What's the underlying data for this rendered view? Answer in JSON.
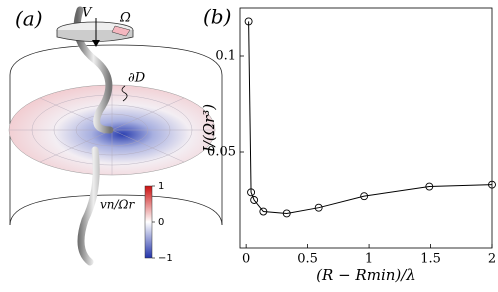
{
  "illustration": {
    "panel_label": "(a)",
    "velocity_label": "V",
    "rotation_label": "Ω",
    "surface_label": "∂D",
    "colorbar": {
      "label": "vn/Ωr",
      "lim": [
        -1,
        1
      ],
      "ticks": [
        1,
        0,
        {
          "value": -1,
          "label": "−1"
        }
      ],
      "colors": [
        "#2233aa",
        "#ffffff",
        "#cc1111"
      ]
    }
  },
  "chart_data": {
    "type": "line",
    "panel_label": "(b)",
    "x_label": "(R − Rmin)/λ",
    "y_label": "I/(Ωr³)",
    "x": [
      0.02,
      0.04,
      0.065,
      0.14,
      0.33,
      0.59,
      0.96,
      1.49,
      2.0
    ],
    "values": [
      0.118,
      0.029,
      0.025,
      0.019,
      0.018,
      0.021,
      0.027,
      0.032,
      0.033
    ],
    "color": "#000000",
    "xlim": [
      -0.05,
      2
    ],
    "ylim": [
      0,
      0.125
    ],
    "xticks": [
      0,
      0.5,
      1,
      1.5,
      2
    ],
    "yticks": [
      0.05,
      0.1
    ]
  }
}
